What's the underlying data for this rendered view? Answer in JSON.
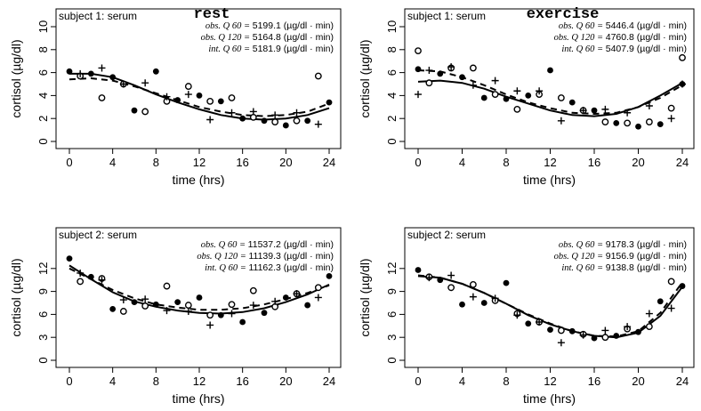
{
  "chart_data": [
    {
      "type": "scatter",
      "subtitle": "subject 1: serum",
      "title": "rest",
      "xlabel": "time (hrs)",
      "ylabel": "cortisol (µg/dl)",
      "xlim": [
        0,
        24
      ],
      "ylim": [
        0,
        10
      ],
      "xticks": [
        "0",
        "4",
        "8",
        "12",
        "16",
        "20",
        "24"
      ],
      "yticks": [
        "0",
        "2",
        "4",
        "6",
        "8",
        "10"
      ],
      "annotations": [
        {
          "label": "obs. Q 60",
          "value": "5199.1",
          "unit": "(µg/dl · min)"
        },
        {
          "label": "obs. Q 120",
          "value": "5164.8",
          "unit": "(µg/dl · min)"
        },
        {
          "label": "int. Q 60",
          "value": "5181.9",
          "unit": "(µg/dl · min)"
        }
      ],
      "series": [
        {
          "marker": "filled-circle",
          "x": [
            0,
            2,
            4,
            6,
            8,
            10,
            12,
            14,
            16,
            18,
            20,
            22,
            24
          ],
          "y": [
            6.1,
            5.9,
            5.6,
            2.7,
            6.1,
            3.6,
            4.0,
            3.5,
            2.0,
            1.8,
            1.4,
            1.8,
            3.4
          ]
        },
        {
          "marker": "open-circle",
          "x": [
            1,
            3,
            5,
            7,
            9,
            11,
            13,
            15,
            17,
            19,
            21,
            23
          ],
          "y": [
            5.7,
            3.8,
            5.0,
            2.6,
            3.5,
            4.8,
            3.5,
            3.8,
            2.1,
            1.7,
            1.8,
            5.7
          ]
        },
        {
          "marker": "plus",
          "x": [
            1,
            3,
            5,
            7,
            9,
            11,
            13,
            15,
            17,
            19,
            21,
            23
          ],
          "y": [
            5.9,
            6.4,
            5.0,
            5.1,
            3.9,
            4.1,
            1.9,
            2.5,
            2.6,
            2.3,
            2.5,
            1.5
          ]
        }
      ],
      "curves": [
        {
          "style": "solid",
          "x": [
            0,
            2,
            4,
            6,
            8,
            10,
            12,
            14,
            16,
            18,
            20,
            22,
            24
          ],
          "y": [
            5.9,
            5.9,
            5.6,
            4.9,
            4.1,
            3.4,
            2.8,
            2.3,
            2.0,
            1.9,
            2.0,
            2.3,
            2.9
          ]
        },
        {
          "style": "dashed",
          "x": [
            0,
            2,
            4,
            6,
            8,
            10,
            12,
            14,
            16,
            18,
            20,
            22,
            24
          ],
          "y": [
            5.4,
            5.5,
            5.3,
            4.8,
            4.2,
            3.6,
            3.0,
            2.6,
            2.3,
            2.2,
            2.3,
            2.6,
            3.3
          ]
        }
      ]
    },
    {
      "type": "scatter",
      "subtitle": "subject 1: serum",
      "title": "exercise",
      "xlabel": "time (hrs)",
      "ylabel": "cortisol (µg/dl)",
      "xlim": [
        0,
        24
      ],
      "ylim": [
        0,
        10
      ],
      "xticks": [
        "0",
        "4",
        "8",
        "12",
        "16",
        "20",
        "24"
      ],
      "yticks": [
        "0",
        "2",
        "4",
        "6",
        "8",
        "10"
      ],
      "annotations": [
        {
          "label": "obs. Q 60",
          "value": "5446.4",
          "unit": "(µg/dl · min)"
        },
        {
          "label": "obs. Q 120",
          "value": "4760.8",
          "unit": "(µg/dl · min)"
        },
        {
          "label": "int. Q 60",
          "value": "5407.9",
          "unit": "(µg/dl · min)"
        }
      ],
      "series": [
        {
          "marker": "filled-circle",
          "x": [
            0,
            2,
            4,
            6,
            8,
            10,
            12,
            14,
            16,
            18,
            20,
            22,
            24
          ],
          "y": [
            6.3,
            5.9,
            5.6,
            3.8,
            3.7,
            4.0,
            6.2,
            3.4,
            2.7,
            1.6,
            1.3,
            1.5,
            5.0
          ]
        },
        {
          "marker": "open-circle",
          "x": [
            0,
            1,
            3,
            5,
            7,
            9,
            11,
            13,
            15,
            17,
            19,
            21,
            23,
            24
          ],
          "y": [
            7.9,
            5.1,
            6.4,
            6.4,
            4.1,
            2.8,
            4.1,
            3.8,
            2.7,
            1.7,
            1.6,
            1.7,
            2.9,
            7.3
          ]
        },
        {
          "marker": "plus",
          "x": [
            0,
            1,
            3,
            5,
            7,
            9,
            11,
            13,
            15,
            17,
            19,
            21,
            23,
            24
          ],
          "y": [
            4.1,
            6.2,
            6.5,
            4.9,
            5.3,
            4.4,
            4.4,
            1.8,
            2.7,
            2.8,
            2.5,
            3.1,
            2.0,
            5.0
          ]
        }
      ],
      "curves": [
        {
          "style": "solid",
          "x": [
            0,
            2,
            4,
            6,
            8,
            10,
            12,
            14,
            16,
            18,
            20,
            22,
            24
          ],
          "y": [
            5.2,
            5.3,
            5.1,
            4.6,
            3.9,
            3.3,
            2.7,
            2.3,
            2.2,
            2.4,
            3.0,
            4.0,
            5.1
          ]
        },
        {
          "style": "dashed",
          "x": [
            0,
            2,
            4,
            6,
            8,
            10,
            12,
            14,
            16,
            18,
            20,
            22,
            24
          ],
          "y": [
            6.2,
            6.1,
            5.6,
            4.9,
            4.1,
            3.4,
            2.9,
            2.5,
            2.4,
            2.5,
            3.0,
            3.8,
            4.9
          ]
        }
      ]
    },
    {
      "type": "scatter",
      "subtitle": "subject 2: serum",
      "title": "",
      "xlabel": "time (hrs)",
      "ylabel": "cortisol (µg/dl)",
      "xlim": [
        0,
        24
      ],
      "ylim": [
        0,
        15
      ],
      "xticks": [
        "0",
        "4",
        "8",
        "12",
        "16",
        "20",
        "24"
      ],
      "yticks": [
        "0",
        "3",
        "6",
        "9",
        "12"
      ],
      "annotations": [
        {
          "label": "obs. Q 60",
          "value": "11537.2",
          "unit": "(µg/dl · min)"
        },
        {
          "label": "obs. Q 120",
          "value": "11139.3",
          "unit": "(µg/dl · min)"
        },
        {
          "label": "int. Q 60",
          "value": "11162.3",
          "unit": "(µg/dl · min)"
        }
      ],
      "series": [
        {
          "marker": "filled-circle",
          "x": [
            0,
            2,
            4,
            6,
            8,
            10,
            12,
            14,
            16,
            18,
            20,
            22,
            24
          ],
          "y": [
            13.3,
            10.9,
            6.7,
            7.6,
            7.3,
            7.6,
            8.2,
            5.9,
            5.0,
            6.2,
            8.2,
            7.2,
            11.0
          ]
        },
        {
          "marker": "open-circle",
          "x": [
            1,
            3,
            5,
            7,
            9,
            11,
            13,
            15,
            17,
            19,
            21,
            23
          ],
          "y": [
            10.3,
            10.7,
            6.4,
            7.1,
            9.7,
            7.2,
            5.9,
            7.3,
            9.1,
            7.0,
            8.7,
            9.5
          ]
        },
        {
          "marker": "plus",
          "x": [
            1,
            3,
            5,
            7,
            9,
            11,
            13,
            15,
            17,
            19,
            21,
            23
          ],
          "y": [
            11.4,
            10.5,
            7.9,
            8.0,
            6.5,
            6.4,
            4.6,
            6.1,
            7.2,
            7.7,
            8.7,
            8.2
          ]
        }
      ],
      "curves": [
        {
          "style": "solid",
          "x": [
            0,
            2,
            4,
            6,
            8,
            10,
            12,
            14,
            16,
            18,
            20,
            22,
            24
          ],
          "y": [
            12.4,
            10.6,
            8.9,
            7.7,
            7.0,
            6.5,
            6.2,
            6.1,
            6.3,
            6.8,
            7.6,
            8.6,
            9.9
          ]
        },
        {
          "style": "dashed",
          "x": [
            0,
            2,
            4,
            6,
            8,
            10,
            12,
            14,
            16,
            18,
            20,
            22,
            24
          ],
          "y": [
            12.0,
            10.6,
            9.2,
            8.1,
            7.3,
            6.9,
            6.6,
            6.6,
            6.8,
            7.3,
            8.0,
            8.8,
            9.8
          ]
        }
      ]
    },
    {
      "type": "scatter",
      "subtitle": "subject 2: serum",
      "title": "",
      "xlabel": "time (hrs)",
      "ylabel": "cortisol (µg/dl)",
      "xlim": [
        0,
        24
      ],
      "ylim": [
        0,
        15
      ],
      "xticks": [
        "0",
        "4",
        "8",
        "12",
        "16",
        "20",
        "24"
      ],
      "yticks": [
        "0",
        "3",
        "6",
        "9",
        "12"
      ],
      "annotations": [
        {
          "label": "obs. Q 60",
          "value": "9178.3",
          "unit": "(µg/dl · min)"
        },
        {
          "label": "obs. Q 120",
          "value": "9156.9",
          "unit": "(µg/dl · min)"
        },
        {
          "label": "int. Q 60",
          "value": "9138.8",
          "unit": "(µg/dl · min)"
        }
      ],
      "series": [
        {
          "marker": "filled-circle",
          "x": [
            0,
            2,
            4,
            6,
            8,
            10,
            12,
            14,
            16,
            18,
            20,
            22,
            24
          ],
          "y": [
            11.8,
            10.5,
            7.3,
            7.5,
            10.1,
            4.8,
            4.0,
            3.8,
            2.9,
            3.2,
            3.7,
            7.7,
            9.7
          ]
        },
        {
          "marker": "open-circle",
          "x": [
            1,
            3,
            5,
            7,
            9,
            11,
            13,
            15,
            17,
            19,
            21,
            23
          ],
          "y": [
            10.9,
            9.5,
            9.9,
            7.8,
            6.1,
            5.0,
            3.9,
            3.4,
            3.0,
            4.1,
            4.4,
            10.3
          ]
        },
        {
          "marker": "plus",
          "x": [
            1,
            3,
            5,
            7,
            9,
            11,
            13,
            15,
            17,
            19,
            21,
            23
          ],
          "y": [
            10.8,
            11.1,
            8.3,
            8.1,
            5.9,
            5.0,
            2.3,
            3.3,
            3.9,
            4.4,
            6.1,
            6.8
          ]
        }
      ],
      "curves": [
        {
          "style": "solid",
          "x": [
            0,
            2,
            4,
            6,
            8,
            10,
            12,
            14,
            16,
            18,
            20,
            22,
            24
          ],
          "y": [
            11.0,
            10.8,
            10.0,
            8.8,
            7.4,
            5.9,
            4.7,
            3.8,
            3.2,
            3.0,
            3.6,
            5.8,
            9.6
          ]
        },
        {
          "style": "dashed",
          "x": [
            0,
            2,
            4,
            6,
            8,
            10,
            12,
            14,
            16,
            18,
            20,
            22,
            24
          ],
          "y": [
            11.1,
            10.8,
            10.0,
            8.8,
            7.4,
            6.0,
            4.8,
            3.8,
            3.2,
            3.1,
            3.8,
            6.2,
            10.2
          ]
        }
      ]
    }
  ]
}
